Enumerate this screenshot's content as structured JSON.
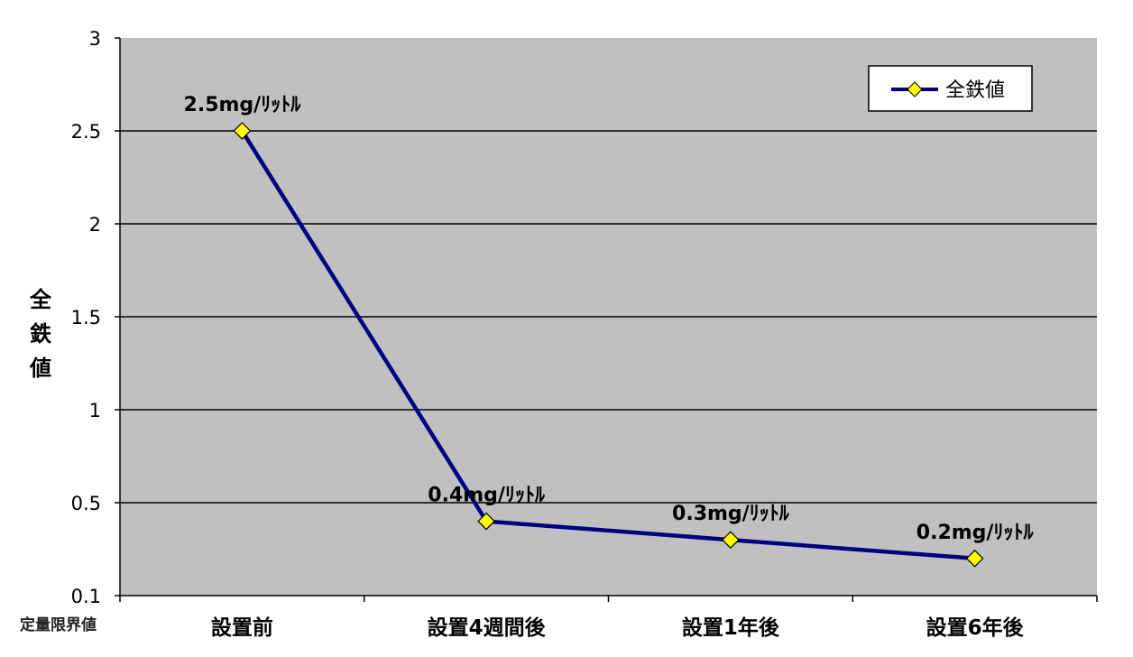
{
  "chart_data": {
    "type": "line",
    "categories": [
      "設置前",
      "設置4週間後",
      "設置1年後",
      "設置6年後"
    ],
    "series": [
      {
        "name": "全鉄値",
        "values": [
          2.5,
          0.4,
          0.3,
          0.2
        ],
        "color": "#000080",
        "marker_color": "#ffff00"
      }
    ],
    "data_labels": [
      "2.5mg/ﾘｯﾄﾙ",
      "0.4mg/ﾘｯﾄﾙ",
      "0.3mg/ﾘｯﾄﾙ",
      "0.2mg/ﾘｯﾄﾙ"
    ],
    "ylabel": "全鉄値",
    "ylim": [
      0,
      3
    ],
    "yticks": [
      {
        "value": 0,
        "label": "0.1"
      },
      {
        "value": 0.5,
        "label": "0.5"
      },
      {
        "value": 1,
        "label": "1"
      },
      {
        "value": 1.5,
        "label": "1.5"
      },
      {
        "value": 2,
        "label": "2"
      },
      {
        "value": 2.5,
        "label": "2.5"
      },
      {
        "value": 3,
        "label": "3"
      }
    ],
    "baseline_note": "定量限界値",
    "legend": {
      "position": "top-right"
    },
    "grid": true,
    "plot_background": "#c0c0c0"
  }
}
